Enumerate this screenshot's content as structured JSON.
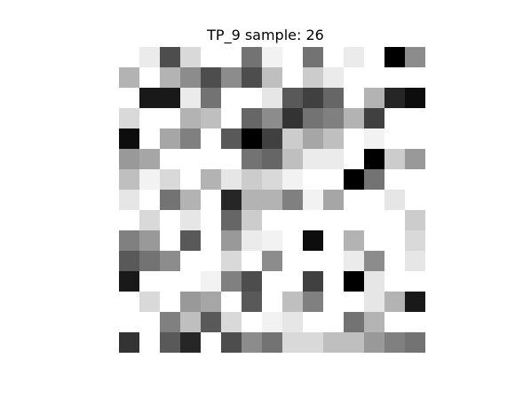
{
  "chart_data": {
    "type": "heatmap",
    "title": "TP_9 sample: 26",
    "rows": 15,
    "cols": 15,
    "colormap": "gray_r",
    "value_range": [
      0,
      1
    ],
    "axes_visible": false,
    "values": [
      [
        0.0,
        0.08,
        0.7,
        0.15,
        0.0,
        0.0,
        0.55,
        0.05,
        0.0,
        0.55,
        0.0,
        0.08,
        0.0,
        1.0,
        0.45
      ],
      [
        0.3,
        0.0,
        0.3,
        0.45,
        0.7,
        0.45,
        0.7,
        0.25,
        0.0,
        0.2,
        0.08,
        0.0,
        0.0,
        0.0,
        0.0
      ],
      [
        0.0,
        0.9,
        0.9,
        0.08,
        0.55,
        0.0,
        0.0,
        0.1,
        0.65,
        0.75,
        0.6,
        0.0,
        0.3,
        0.85,
        0.95
      ],
      [
        0.15,
        0.0,
        0.0,
        0.3,
        0.25,
        0.0,
        0.6,
        0.45,
        0.8,
        0.55,
        0.5,
        0.3,
        0.75,
        0.0,
        0.0
      ],
      [
        0.95,
        0.0,
        0.35,
        0.5,
        0.0,
        0.65,
        1.0,
        0.75,
        0.2,
        0.35,
        0.25,
        0.0,
        0.05,
        0.0,
        0.0
      ],
      [
        0.4,
        0.35,
        0.0,
        0.0,
        0.0,
        0.0,
        0.55,
        0.6,
        0.25,
        0.08,
        0.08,
        0.0,
        1.0,
        0.2,
        0.4
      ],
      [
        0.25,
        0.05,
        0.15,
        0.0,
        0.3,
        0.1,
        0.2,
        0.15,
        0.05,
        0.0,
        0.0,
        1.0,
        0.55,
        0.0,
        0.0
      ],
      [
        0.1,
        0.0,
        0.55,
        0.3,
        0.0,
        0.85,
        0.3,
        0.3,
        0.5,
        0.05,
        0.35,
        0.0,
        0.0,
        0.1,
        0.0
      ],
      [
        0.0,
        0.15,
        0.0,
        0.1,
        0.0,
        0.6,
        0.2,
        0.0,
        0.0,
        0.0,
        0.0,
        0.0,
        0.0,
        0.0,
        0.2
      ],
      [
        0.5,
        0.4,
        0.0,
        0.65,
        0.0,
        0.4,
        0.08,
        0.05,
        0.0,
        0.95,
        0.0,
        0.3,
        0.0,
        0.0,
        0.15
      ],
      [
        0.65,
        0.55,
        0.45,
        0.0,
        0.0,
        0.15,
        0.0,
        0.45,
        0.0,
        0.0,
        0.0,
        0.08,
        0.45,
        0.0,
        0.1
      ],
      [
        0.9,
        0.0,
        0.0,
        0.0,
        0.05,
        0.5,
        0.7,
        0.0,
        0.0,
        0.75,
        0.0,
        1.0,
        0.1,
        0.0,
        0.0
      ],
      [
        0.0,
        0.15,
        0.0,
        0.4,
        0.35,
        0.0,
        0.65,
        0.0,
        0.25,
        0.5,
        0.0,
        0.0,
        0.1,
        0.3,
        0.9
      ],
      [
        0.0,
        0.0,
        0.5,
        0.25,
        0.65,
        0.15,
        0.0,
        0.05,
        0.1,
        0.0,
        0.0,
        0.55,
        0.3,
        0.0,
        0.0
      ],
      [
        0.8,
        0.0,
        0.65,
        0.85,
        0.0,
        0.7,
        0.45,
        0.55,
        0.15,
        0.15,
        0.25,
        0.25,
        0.4,
        0.5,
        0.55
      ]
    ]
  }
}
